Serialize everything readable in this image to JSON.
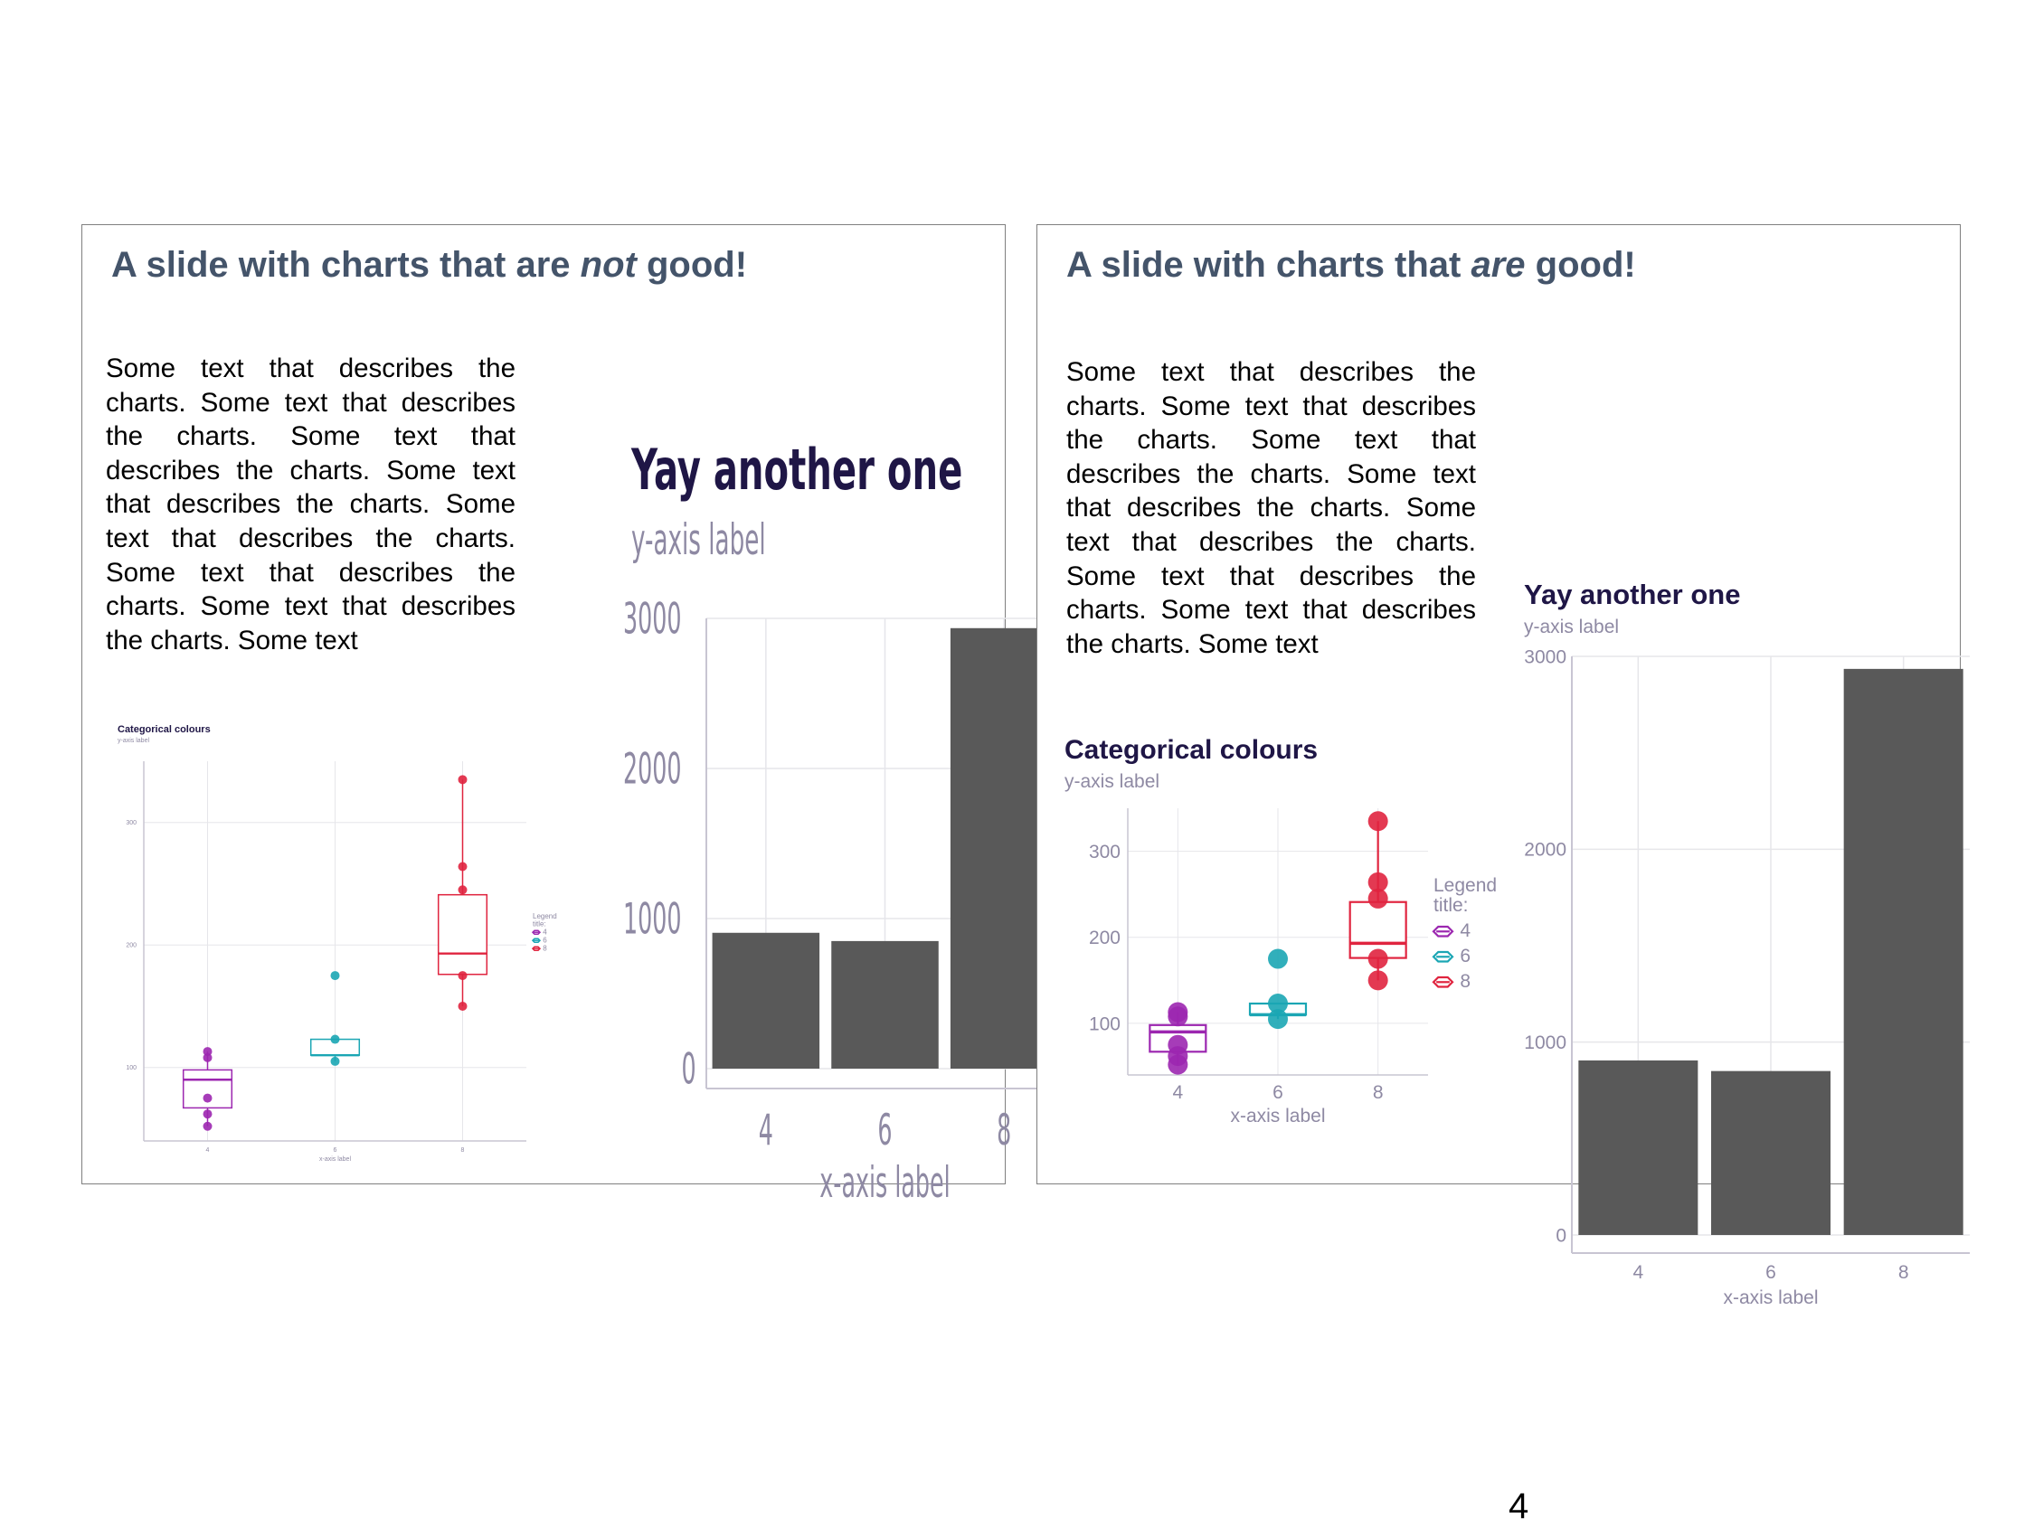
{
  "page_number": "4",
  "colors": {
    "title": "#44546a",
    "chart_title": "#1f1646",
    "axis_text": "#8e89a3",
    "grid": "#e6e6ea",
    "axis_line": "#c8c5d2",
    "bar": "#595959",
    "cat_4": "#9c27b0",
    "cat_6": "#1ba6b4",
    "cat_8": "#e0243f"
  },
  "slides": {
    "bad": {
      "title_pre": "A slide with charts that are ",
      "title_em": "not",
      "title_post": " good!",
      "body": "Some text that describes the charts. Some text that describes the charts. Some text that describes the charts. Some text that describes the charts. Some text that describes the charts. Some text that describes the charts. Some text that describes the charts. Some text"
    },
    "good": {
      "title_pre": "A slide with charts that ",
      "title_em": "are",
      "title_post": " good!",
      "body": "Some text that describes the charts. Some text that describes the charts. Some text that describes the charts. Some text that describes the charts. Some text that describes the charts. Some text that describes the charts. Some text that describes the charts. Some text"
    }
  },
  "chart_data": [
    {
      "id": "bad-bar",
      "type": "bar",
      "title": "Yay another one",
      "ylabel": "y-axis label",
      "xlabel": "x-axis label",
      "categories": [
        "4",
        "6",
        "8"
      ],
      "values": [
        905,
        850,
        2935
      ],
      "ylim": [
        0,
        3000
      ],
      "yticks": [
        0,
        1000,
        2000,
        3000
      ],
      "grid": true
    },
    {
      "id": "bad-box",
      "type": "box",
      "title": "Categorical colours",
      "ylabel": "y-axis label",
      "xlabel": "x-axis label",
      "legend_title": "Legend title:",
      "legend_placement": "right",
      "categories": [
        "4",
        "6",
        "8"
      ],
      "ylim": [
        40,
        350
      ],
      "yticks": [
        100,
        200,
        300
      ],
      "boxes": [
        {
          "name": "4",
          "q1": 67,
          "median": 90,
          "q3": 98,
          "whisker_low": 52,
          "whisker_high": 113,
          "points": [
            52,
            62,
            75,
            108,
            113
          ]
        },
        {
          "name": "6",
          "q1": 110,
          "median": 110,
          "q3": 123,
          "whisker_low": 105,
          "whisker_high": 123,
          "points": [
            105,
            123,
            175
          ]
        },
        {
          "name": "8",
          "q1": 176,
          "median": 193,
          "q3": 241,
          "whisker_low": 150,
          "whisker_high": 335,
          "points": [
            150,
            175,
            245,
            264,
            335
          ]
        }
      ]
    },
    {
      "id": "good-box",
      "type": "box",
      "title": "Categorical colours",
      "ylabel": "y-axis label",
      "xlabel": "x-axis label",
      "legend_title": "Legend title:",
      "legend_placement": "right",
      "categories": [
        "4",
        "6",
        "8"
      ],
      "ylim": [
        40,
        350
      ],
      "yticks": [
        100,
        200,
        300
      ],
      "boxes": [
        {
          "name": "4",
          "q1": 67,
          "median": 90,
          "q3": 98,
          "whisker_low": 52,
          "whisker_high": 113,
          "points": [
            52,
            62,
            75,
            108,
            113
          ]
        },
        {
          "name": "6",
          "q1": 110,
          "median": 110,
          "q3": 123,
          "whisker_low": 105,
          "whisker_high": 123,
          "points": [
            105,
            123,
            175
          ]
        },
        {
          "name": "8",
          "q1": 176,
          "median": 193,
          "q3": 241,
          "whisker_low": 150,
          "whisker_high": 335,
          "points": [
            150,
            175,
            245,
            264,
            335
          ]
        }
      ]
    },
    {
      "id": "good-bar",
      "type": "bar",
      "title": "Yay another one",
      "ylabel": "y-axis label",
      "xlabel": "x-axis label",
      "categories": [
        "4",
        "6",
        "8"
      ],
      "values": [
        905,
        850,
        2935
      ],
      "ylim": [
        0,
        3000
      ],
      "yticks": [
        0,
        1000,
        2000,
        3000
      ],
      "grid": true
    }
  ]
}
